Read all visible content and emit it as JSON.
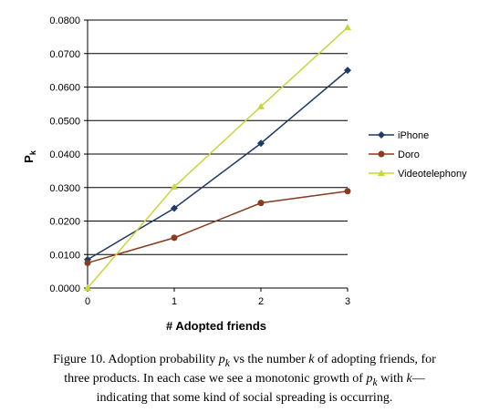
{
  "chart_data": {
    "type": "line",
    "ylabel_main": "P",
    "ylabel_sub": "k",
    "xlabel": "# Adopted friends",
    "x": [
      0,
      1,
      2,
      3
    ],
    "x_ticks": [
      "0",
      "1",
      "2",
      "3"
    ],
    "ylim": [
      0,
      0.08
    ],
    "y_ticks": [
      "0.0000",
      "0.0100",
      "0.0200",
      "0.0300",
      "0.0400",
      "0.0500",
      "0.0600",
      "0.0700",
      "0.0800"
    ],
    "grid": "horizontal",
    "legend_position": "right",
    "series": [
      {
        "name": "iPhone",
        "values": [
          0.0085,
          0.0238,
          0.0432,
          0.065
        ],
        "color": "#1f3a66",
        "marker": "diamond"
      },
      {
        "name": "Doro",
        "values": [
          0.0075,
          0.015,
          0.0254,
          0.0289
        ],
        "color": "#8a3a1e",
        "marker": "circle"
      },
      {
        "name": "Videotelephony",
        "values": [
          0.0,
          0.0302,
          0.0542,
          0.0778
        ],
        "color": "#c8d63a",
        "marker": "triangle"
      }
    ]
  },
  "caption": {
    "line1_a": "Figure 10.   Adoption probability ",
    "line1_pk": "p",
    "line1_pk_sub": "k",
    "line1_b": " vs the number ",
    "line1_k": "k",
    "line1_c": " of adopting friends, for",
    "line2_a": "three products. In each case we see a monotonic growth of ",
    "line2_pk": "p",
    "line2_pk_sub": "k",
    "line2_b": " with ",
    "line2_k": "k",
    "line2_c": "—",
    "line3": "indicating that some kind of social spreading is occurring."
  }
}
